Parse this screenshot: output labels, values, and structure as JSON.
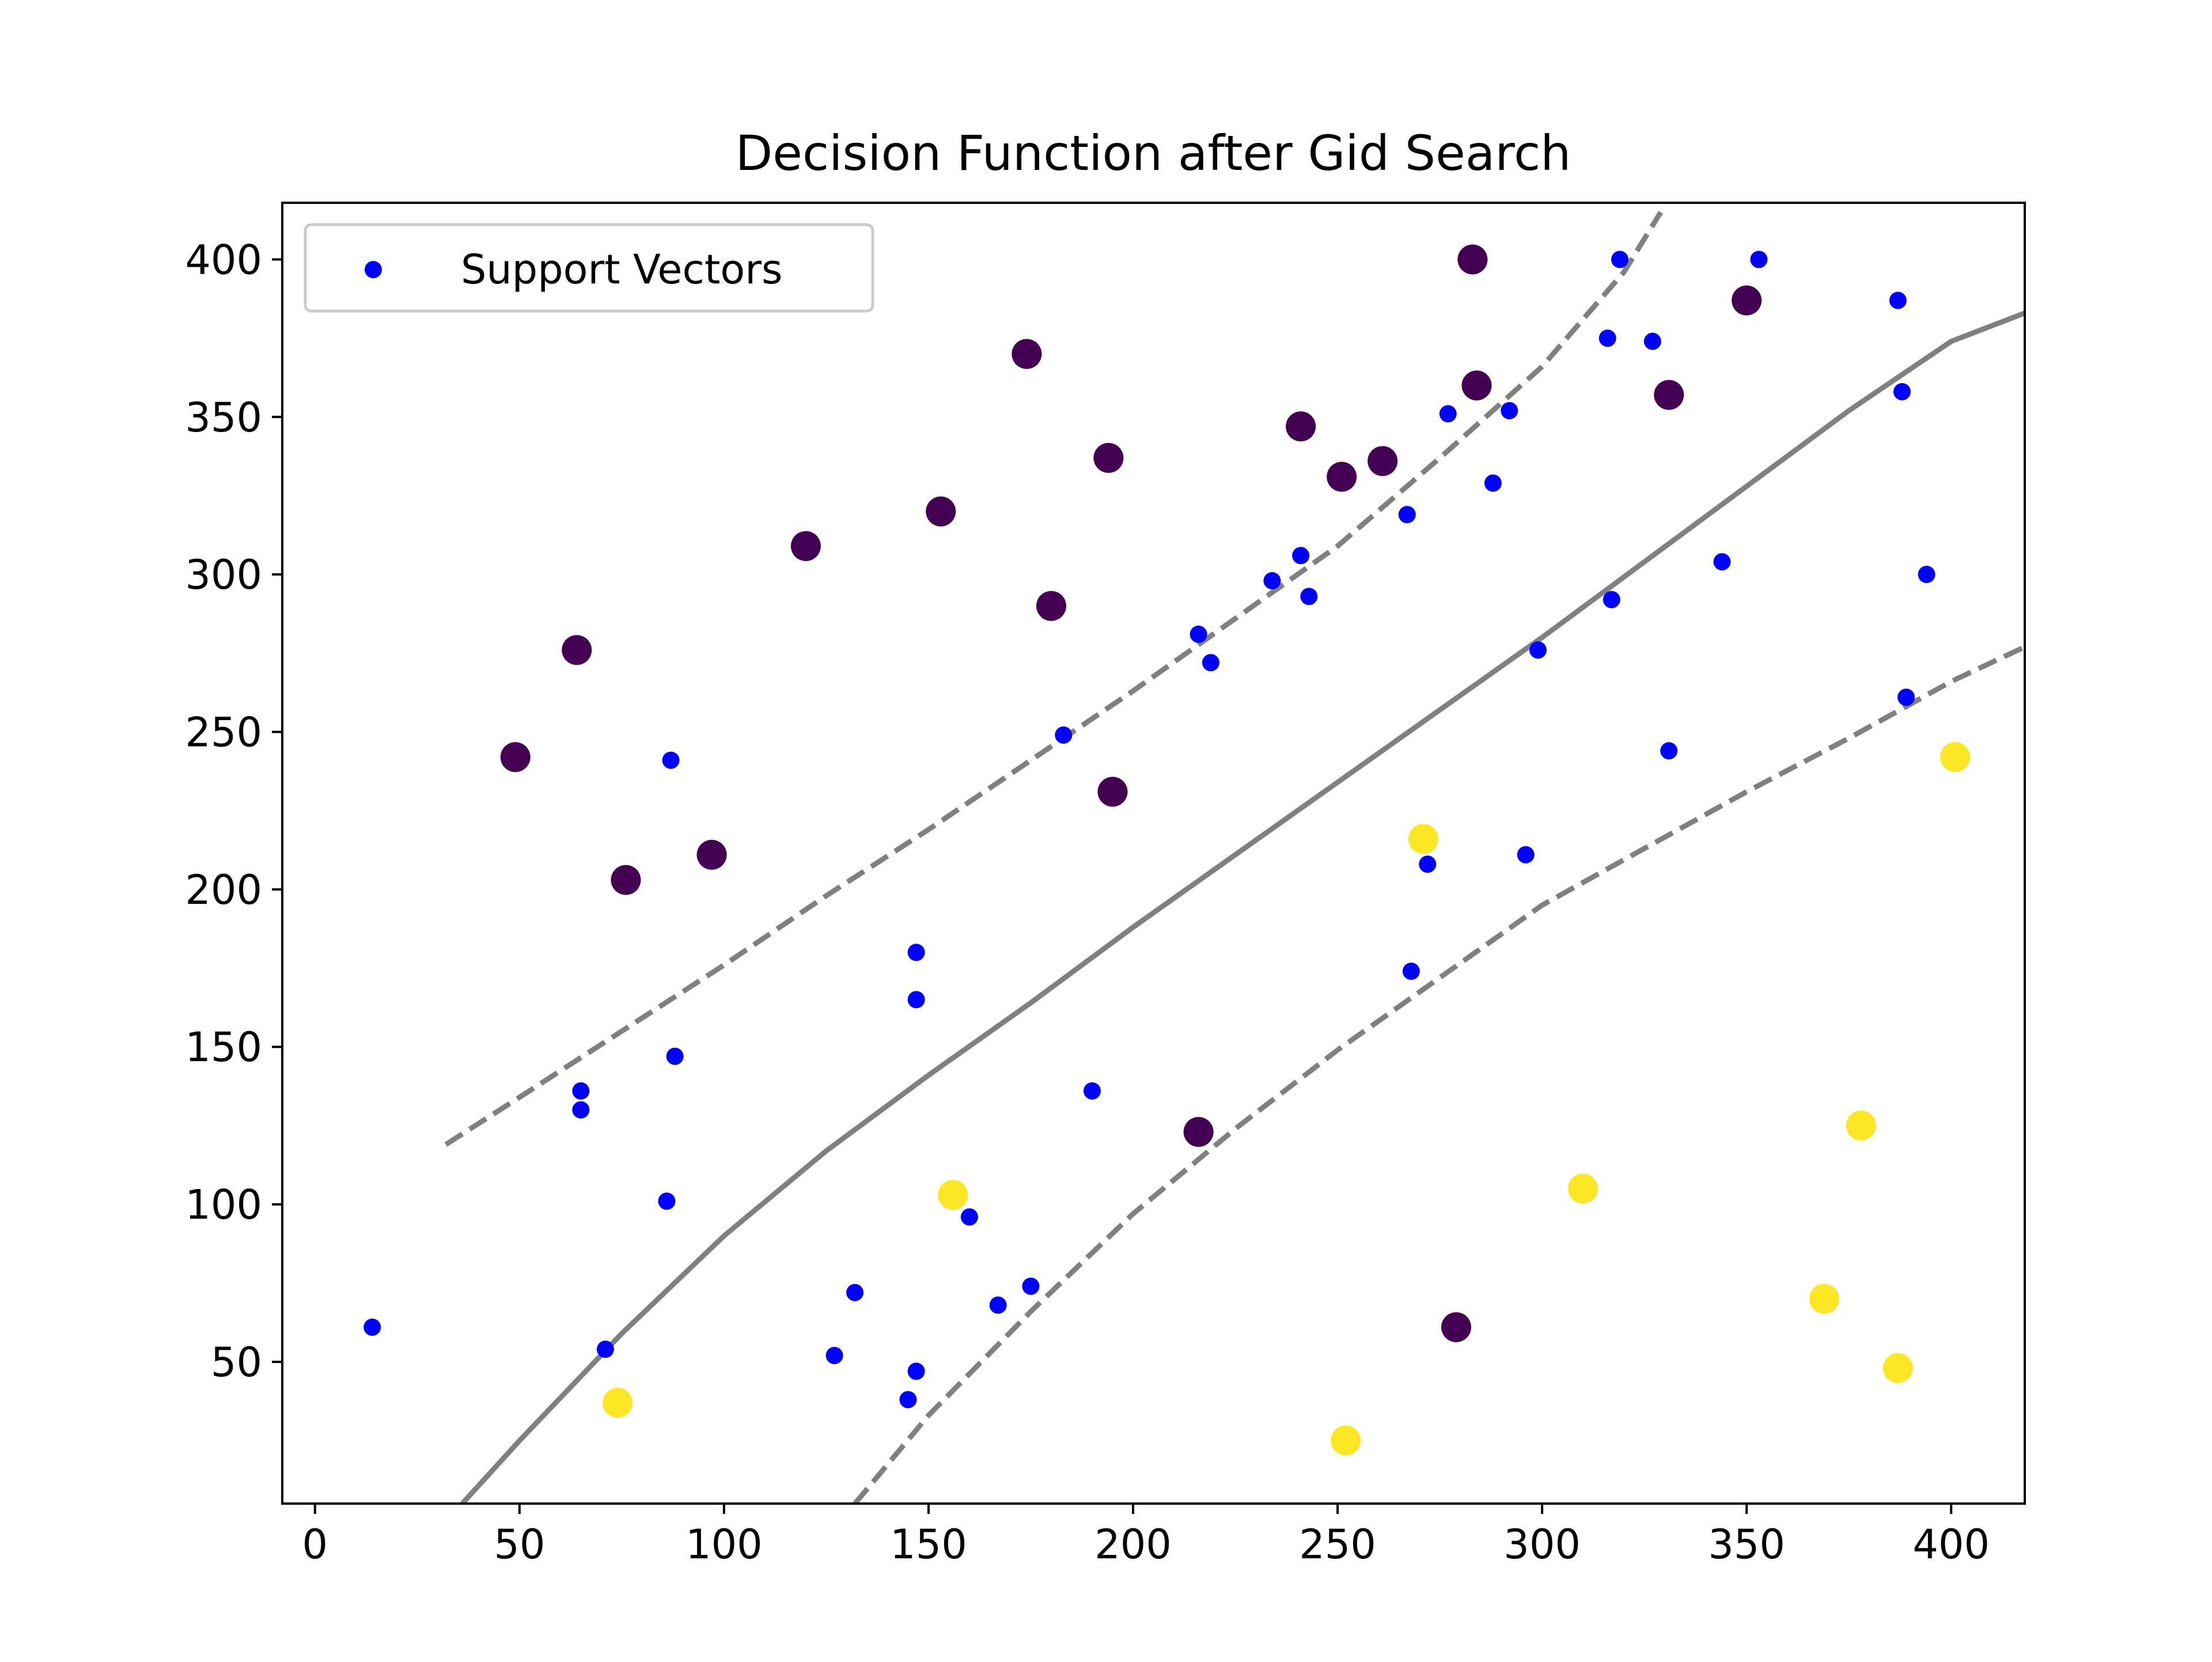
{
  "chart_data": {
    "type": "scatter",
    "title": "Decision Function after Gid Search",
    "xlabel": "",
    "ylabel": "",
    "xlim": [
      -8,
      418
    ],
    "ylim": [
      5,
      418
    ],
    "xticks": [
      0,
      50,
      100,
      150,
      200,
      250,
      300,
      350,
      400
    ],
    "yticks": [
      50,
      100,
      150,
      200,
      250,
      300,
      350,
      400
    ],
    "grid": false,
    "legend": {
      "position": "upper left",
      "entries": [
        "Support Vectors"
      ]
    },
    "colors": {
      "class_0": "#440154",
      "class_1": "#fde725",
      "support_vectors": "#0000ff",
      "decision_lines": "#808080"
    },
    "class_0_points": [
      [
        49,
        242
      ],
      [
        64,
        276
      ],
      [
        76,
        203
      ],
      [
        97,
        211
      ],
      [
        120,
        309
      ],
      [
        153,
        320
      ],
      [
        174,
        370
      ],
      [
        180,
        290
      ],
      [
        194,
        337
      ],
      [
        195,
        231
      ],
      [
        216,
        123
      ],
      [
        241,
        347
      ],
      [
        251,
        331
      ],
      [
        261,
        336
      ],
      [
        279,
        61
      ],
      [
        283,
        400
      ],
      [
        284,
        360
      ],
      [
        331,
        357
      ],
      [
        350,
        387
      ]
    ],
    "class_1_points": [
      [
        74,
        37
      ],
      [
        156,
        103
      ],
      [
        252,
        25
      ],
      [
        271,
        216
      ],
      [
        310,
        105
      ],
      [
        369,
        70
      ],
      [
        378,
        125
      ],
      [
        387,
        48
      ],
      [
        401,
        242
      ]
    ],
    "support_vectors": [
      [
        14,
        61
      ],
      [
        65,
        136
      ],
      [
        65,
        130
      ],
      [
        71,
        54
      ],
      [
        86,
        101
      ],
      [
        87,
        241
      ],
      [
        88,
        147
      ],
      [
        127,
        52
      ],
      [
        132,
        72
      ],
      [
        145,
        38
      ],
      [
        147,
        165
      ],
      [
        147,
        47
      ],
      [
        147,
        180
      ],
      [
        160,
        96
      ],
      [
        167,
        68
      ],
      [
        175,
        74
      ],
      [
        183,
        249
      ],
      [
        190,
        136
      ],
      [
        216,
        281
      ],
      [
        219,
        272
      ],
      [
        234,
        298
      ],
      [
        241,
        306
      ],
      [
        243,
        293
      ],
      [
        267,
        319
      ],
      [
        268,
        174
      ],
      [
        272,
        208
      ],
      [
        277,
        351
      ],
      [
        288,
        329
      ],
      [
        292,
        352
      ],
      [
        296,
        211
      ],
      [
        299,
        276
      ],
      [
        316,
        375
      ],
      [
        317,
        292
      ],
      [
        319,
        400
      ],
      [
        327,
        374
      ],
      [
        331,
        244
      ],
      [
        344,
        304
      ],
      [
        353,
        400
      ],
      [
        387,
        387
      ],
      [
        388,
        358
      ],
      [
        389,
        261
      ],
      [
        394,
        300
      ]
    ],
    "decision_boundary": [
      [
        36,
        5
      ],
      [
        50,
        25
      ],
      [
        75,
        59
      ],
      [
        100,
        90
      ],
      [
        125,
        117
      ],
      [
        150,
        141
      ],
      [
        175,
        164
      ],
      [
        200,
        188
      ],
      [
        225,
        211
      ],
      [
        250,
        234
      ],
      [
        275,
        257
      ],
      [
        300,
        280
      ],
      [
        325,
        304
      ],
      [
        350,
        328
      ],
      [
        375,
        352
      ],
      [
        400,
        374
      ],
      [
        418,
        383
      ]
    ],
    "upper_margin": [
      [
        32,
        119
      ],
      [
        50,
        134
      ],
      [
        75,
        155
      ],
      [
        100,
        176
      ],
      [
        125,
        198
      ],
      [
        150,
        219
      ],
      [
        175,
        241
      ],
      [
        200,
        263
      ],
      [
        225,
        286
      ],
      [
        250,
        309
      ],
      [
        275,
        337
      ],
      [
        300,
        366
      ],
      [
        320,
        396
      ],
      [
        329,
        415
      ]
    ],
    "lower_margin": [
      [
        132,
        5
      ],
      [
        150,
        33
      ],
      [
        175,
        66
      ],
      [
        200,
        97
      ],
      [
        225,
        124
      ],
      [
        250,
        149
      ],
      [
        275,
        172
      ],
      [
        300,
        195
      ],
      [
        325,
        213
      ],
      [
        350,
        231
      ],
      [
        375,
        248
      ],
      [
        400,
        266
      ],
      [
        418,
        277
      ]
    ]
  }
}
